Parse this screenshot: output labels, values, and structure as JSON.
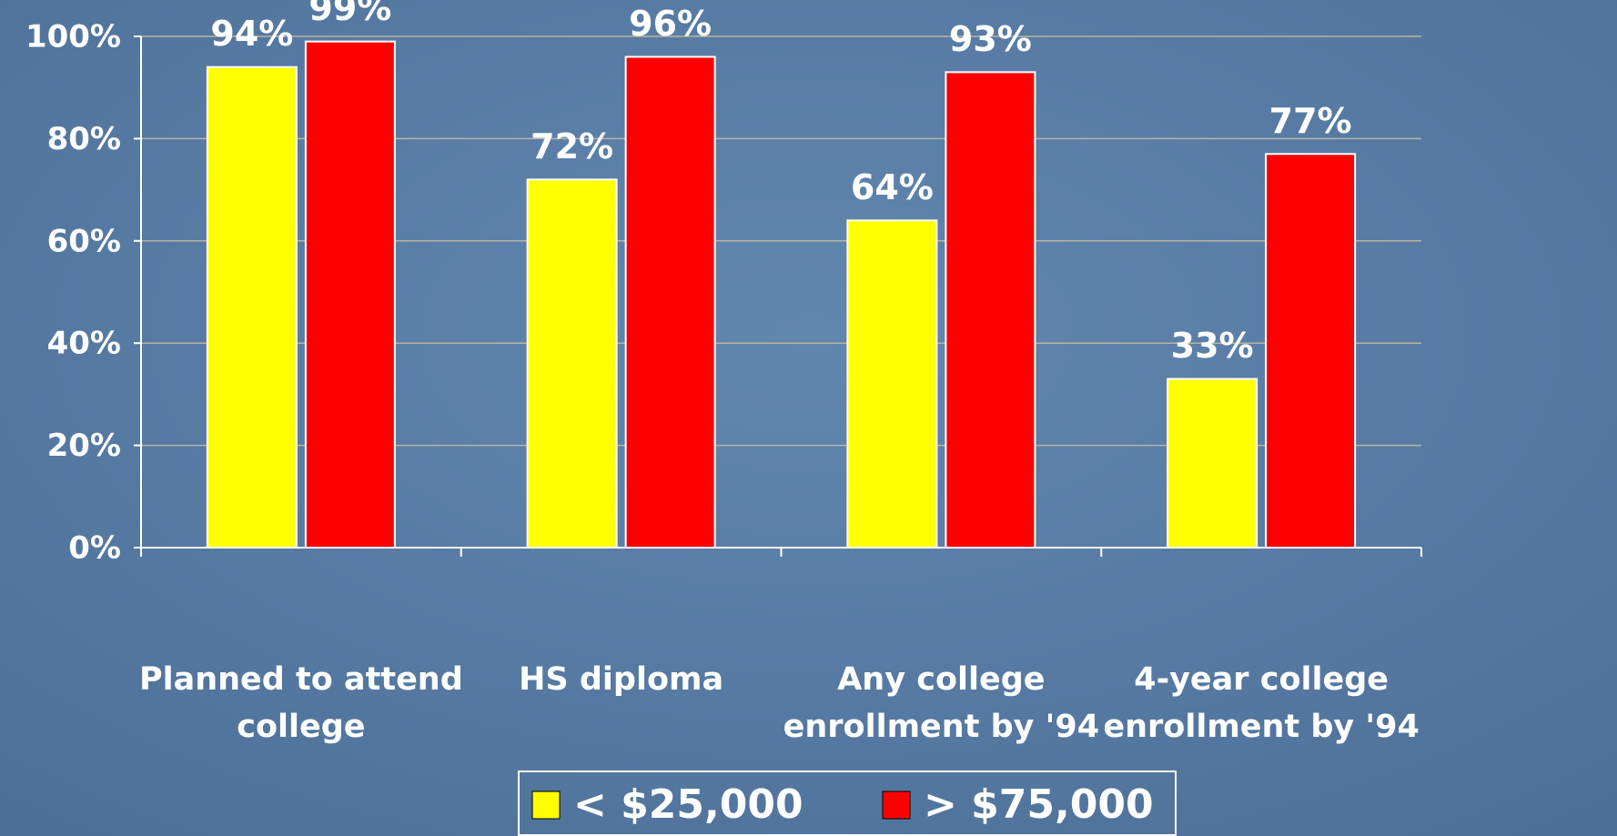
{
  "chart_data": {
    "type": "bar",
    "categories": [
      [
        "Planned to attend",
        "college"
      ],
      [
        "HS diploma"
      ],
      [
        "Any college",
        "enrollment by '94"
      ],
      [
        "4-year college",
        "enrollment by '94"
      ]
    ],
    "series": [
      {
        "name": "< $25,000",
        "color": "#ffff00",
        "values": [
          94,
          72,
          64,
          33
        ],
        "value_labels": [
          "94%",
          "72%",
          "64%",
          "33%"
        ]
      },
      {
        "name": "> $75,000",
        "color": "#ff0000",
        "values": [
          99,
          96,
          93,
          77
        ],
        "value_labels": [
          "99%",
          "96%",
          "93%",
          "77%"
        ]
      }
    ],
    "ylim": [
      0,
      100
    ],
    "yticks": [
      {
        "value": 0,
        "label": "0%"
      },
      {
        "value": 20,
        "label": "20%"
      },
      {
        "value": 40,
        "label": "40%"
      },
      {
        "value": 60,
        "label": "60%"
      },
      {
        "value": 80,
        "label": "80%"
      },
      {
        "value": 100,
        "label": "100%"
      }
    ],
    "grid": true,
    "legend": "bottom"
  }
}
